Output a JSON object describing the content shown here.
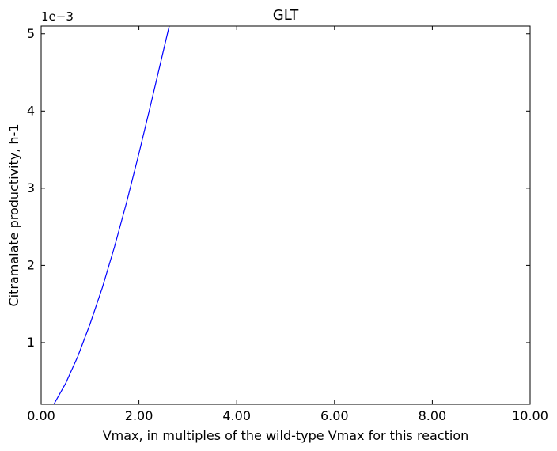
{
  "chart_data": {
    "type": "line",
    "title": "GLT",
    "xlabel": "Vmax, in multiples of the wild-type Vmax for this reaction",
    "ylabel": "Citramalate productivity, h-1",
    "y_offset_text": "1e−3",
    "xlim": [
      0,
      10
    ],
    "ylim": [
      0.0002,
      0.0051
    ],
    "x_ticks": [
      0,
      2,
      4,
      6,
      8,
      10
    ],
    "x_tick_labels": [
      "0.00",
      "2.00",
      "4.00",
      "6.00",
      "8.00",
      "10.00"
    ],
    "y_ticks": [
      0.001,
      0.002,
      0.003,
      0.004,
      0.005
    ],
    "y_tick_labels": [
      "1",
      "2",
      "3",
      "4",
      "5"
    ],
    "grid": false,
    "series": [
      {
        "color": "#0000ff",
        "x": [
          0.1,
          0.25,
          0.5,
          0.75,
          1.0,
          1.25,
          1.5,
          1.75,
          2.0,
          2.25,
          2.5,
          2.75
        ],
        "y": [
          7e-05,
          0.00019,
          0.00047,
          0.00082,
          0.00124,
          0.00171,
          0.00224,
          0.00282,
          0.00345,
          0.00411,
          0.00478,
          0.00545
        ]
      }
    ]
  }
}
